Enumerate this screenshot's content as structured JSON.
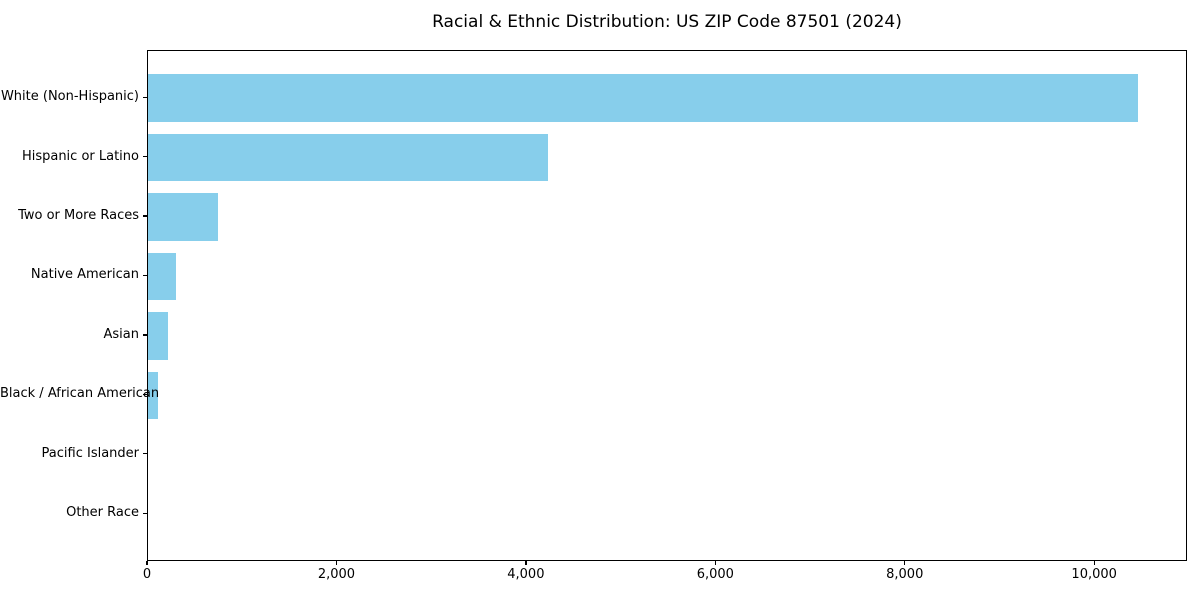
{
  "chart_data": {
    "type": "bar",
    "orientation": "horizontal",
    "title": "Racial & Ethnic Distribution: US ZIP Code 87501 (2024)",
    "categories": [
      "White (Non-Hispanic)",
      "Hispanic or Latino",
      "Two or More Races",
      "Native American",
      "Asian",
      "Black / African American",
      "Pacific Islander",
      "Other Race"
    ],
    "values": [
      10450,
      4220,
      740,
      295,
      215,
      110,
      0,
      0
    ],
    "xlabel": "",
    "ylabel": "",
    "xlim": [
      0,
      10980
    ],
    "x_ticks": [
      0,
      2000,
      4000,
      6000,
      8000,
      10000
    ],
    "x_tick_labels": [
      "0",
      "2,000",
      "4,000",
      "6,000",
      "8,000",
      "10,000"
    ],
    "bar_color": "#87ceeb",
    "axis_color": "#000000",
    "background_color": "#ffffff",
    "grid": false,
    "legend": false
  }
}
